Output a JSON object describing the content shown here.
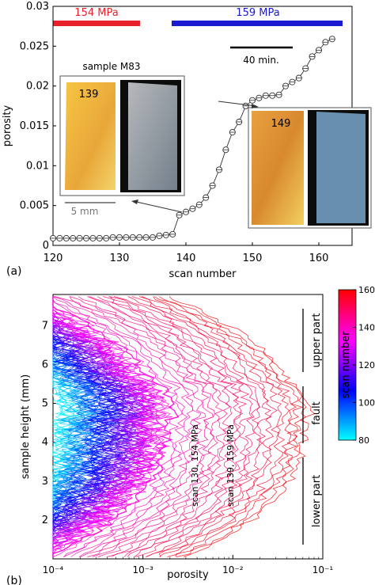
{
  "panel_a": {
    "letter": "(a)",
    "stress_labels": [
      {
        "text": "154 MPa",
        "color": "#e8202a"
      },
      {
        "text": "159 MPa",
        "color": "#1a1ad0"
      }
    ],
    "time_scale_label": "40 min.",
    "sample_label": "sample M83",
    "inset_left_number": "139",
    "inset_right_number": "149",
    "length_scale_label": "5 mm"
  },
  "panel_b": {
    "letter": "(b)",
    "annotations": [
      "scan 130, 154 MPa",
      "scan 139, 159 MPa"
    ],
    "region_labels": [
      "upper part",
      "fault",
      "lower part"
    ],
    "colorbar": {
      "label": "scan number",
      "ticks": [
        "80",
        "100",
        "120",
        "140",
        "160"
      ],
      "colors": [
        "#00ffff",
        "#0000ff",
        "#ff00ff",
        "#ff0000"
      ]
    }
  },
  "chart_data": [
    {
      "type": "line",
      "xlabel": "scan number",
      "ylabel": "porosity",
      "xlim": [
        120,
        165
      ],
      "ylim": [
        0,
        0.03
      ],
      "xticks": [
        "120",
        "130",
        "140",
        "150",
        "160"
      ],
      "yticks": [
        "0",
        "0.005",
        "0.01",
        "0.015",
        "0.02",
        "0.025",
        "0.03"
      ],
      "x": [
        120,
        121,
        122,
        123,
        124,
        125,
        126,
        127,
        128,
        129,
        130,
        131,
        132,
        133,
        134,
        135,
        136,
        137,
        138,
        139,
        140,
        141,
        142,
        143,
        144,
        145,
        146,
        147,
        148,
        149,
        150,
        151,
        152,
        153,
        154,
        155,
        156,
        157,
        158,
        159,
        160,
        161,
        162
      ],
      "y": [
        0.0009,
        0.0009,
        0.0009,
        0.0009,
        0.0009,
        0.0009,
        0.0009,
        0.0009,
        0.0009,
        0.001,
        0.001,
        0.001,
        0.001,
        0.001,
        0.001,
        0.001,
        0.0012,
        0.0013,
        0.0014,
        0.0038,
        0.0042,
        0.0046,
        0.0051,
        0.006,
        0.0075,
        0.0095,
        0.012,
        0.0142,
        0.0155,
        0.0175,
        0.0182,
        0.0185,
        0.0188,
        0.0188,
        0.0189,
        0.02,
        0.0205,
        0.021,
        0.0222,
        0.0237,
        0.0245,
        0.0255,
        0.0259
      ]
    },
    {
      "type": "line",
      "xlabel": "porosity",
      "ylabel": "sample height (mm)",
      "xscale": "log",
      "xlim": [
        0.0001,
        0.1
      ],
      "ylim": [
        1,
        7.8
      ],
      "xticks": [
        "10⁻⁴",
        "10⁻³",
        "10⁻²",
        "10⁻¹"
      ],
      "yticks": [
        "2",
        "3",
        "4",
        "5",
        "6",
        "7"
      ],
      "series_note": "one porosity profile per scan, coloured by scan number",
      "scan_range": [
        80,
        162
      ],
      "highlighted_scans": [
        130,
        139
      ]
    }
  ]
}
